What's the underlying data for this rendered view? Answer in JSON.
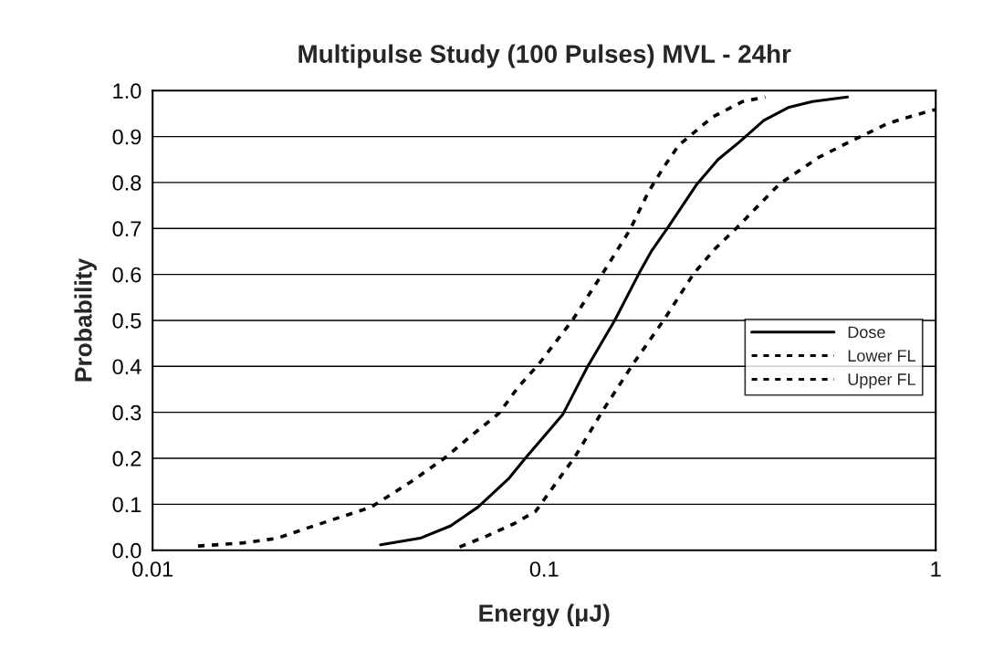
{
  "chart_data": {
    "type": "line",
    "title": "Multipulse Study (100 Pulses) MVL - 24hr",
    "xlabel": "Energy (μJ)",
    "ylabel": "Probability",
    "log": "x",
    "xlim": [
      0.01,
      1
    ],
    "xticks": [
      0.01,
      0.1,
      1
    ],
    "ylim": [
      0,
      1
    ],
    "yticks": [
      {
        "value": 0,
        "label": "0.0"
      },
      0.1,
      0.2,
      0.3,
      0.4,
      0.5,
      0.6,
      0.7,
      0.8,
      0.9,
      {
        "value": 1,
        "label": "1.0"
      }
    ],
    "grid": "y",
    "legend": "right",
    "marker": "none",
    "series": [
      {
        "name": "Dose",
        "color": "#000000",
        "line_style": "solid",
        "x": [
          0.0382,
          0.0482,
          0.0577,
          0.0678,
          0.081,
          0.0901,
          0.1117,
          0.1288,
          0.1514,
          0.1746,
          0.1877,
          0.205,
          0.2453,
          0.278,
          0.315,
          0.364,
          0.42,
          0.484,
          0.595
        ],
        "values": [
          0.012,
          0.026,
          0.053,
          0.094,
          0.155,
          0.203,
          0.296,
          0.398,
          0.5,
          0.602,
          0.65,
          0.697,
          0.796,
          0.85,
          0.888,
          0.935,
          0.963,
          0.976,
          0.986
        ]
      },
      {
        "name": "Lower FL",
        "color": "#000000",
        "line_style": "dashed",
        "x": [
          0.01306,
          0.01707,
          0.0208,
          0.0258,
          0.0362,
          0.0457,
          0.0556,
          0.0653,
          0.0767,
          0.0855,
          0.0969,
          0.118,
          0.141,
          0.1656,
          0.1845,
          0.2018,
          0.2206,
          0.2686,
          0.3208,
          0.367
        ],
        "values": [
          0.009,
          0.016,
          0.026,
          0.053,
          0.094,
          0.149,
          0.2,
          0.25,
          0.298,
          0.353,
          0.405,
          0.5,
          0.602,
          0.697,
          0.779,
          0.833,
          0.881,
          0.942,
          0.976,
          0.986
        ]
      },
      {
        "name": "Upper FL",
        "color": "#000000",
        "line_style": "dashed",
        "x": [
          0.0608,
          0.0714,
          0.0839,
          0.0952,
          0.12,
          0.141,
          0.1686,
          0.2018,
          0.241,
          0.2733,
          0.31,
          0.398,
          0.501,
          0.601,
          0.757,
          0.906,
          1.0
        ],
        "values": [
          0.007,
          0.031,
          0.058,
          0.085,
          0.204,
          0.303,
          0.405,
          0.5,
          0.602,
          0.656,
          0.701,
          0.796,
          0.854,
          0.888,
          0.929,
          0.949,
          0.959
        ]
      }
    ]
  }
}
